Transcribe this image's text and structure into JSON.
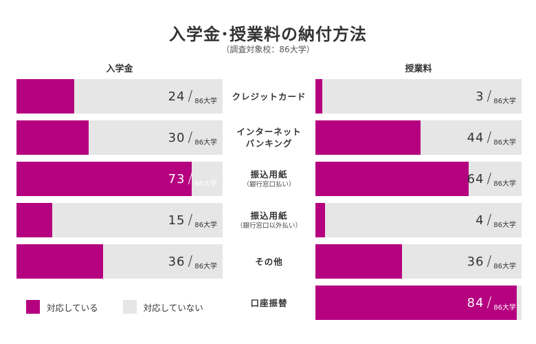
{
  "title": "入学金･授業料の納付方法",
  "subtitle": "（調査対象校：86大学）",
  "colors": {
    "supported": "#b5007f",
    "unsupported": "#e6e6e6"
  },
  "legend": {
    "supported": "対応している",
    "unsupported": "対応していない"
  },
  "chart_data": {
    "type": "bar",
    "orientation": "horizontal",
    "total": 86,
    "unit": "86大学",
    "categories": [
      {
        "main": "クレジットカード",
        "sub": ""
      },
      {
        "main": "インターネット\nバンキング",
        "sub": ""
      },
      {
        "main": "振込用紙",
        "sub": "（銀行窓口払い）"
      },
      {
        "main": "振込用紙",
        "sub": "（銀行窓口以外払い）"
      },
      {
        "main": "その他",
        "sub": ""
      },
      {
        "main": "口座振替",
        "sub": ""
      }
    ],
    "series": [
      {
        "name": "入学金",
        "values": [
          24,
          30,
          73,
          15,
          36,
          null
        ]
      },
      {
        "name": "授業料",
        "values": [
          3,
          44,
          64,
          4,
          36,
          84
        ]
      }
    ],
    "xlim": [
      0,
      86
    ]
  }
}
